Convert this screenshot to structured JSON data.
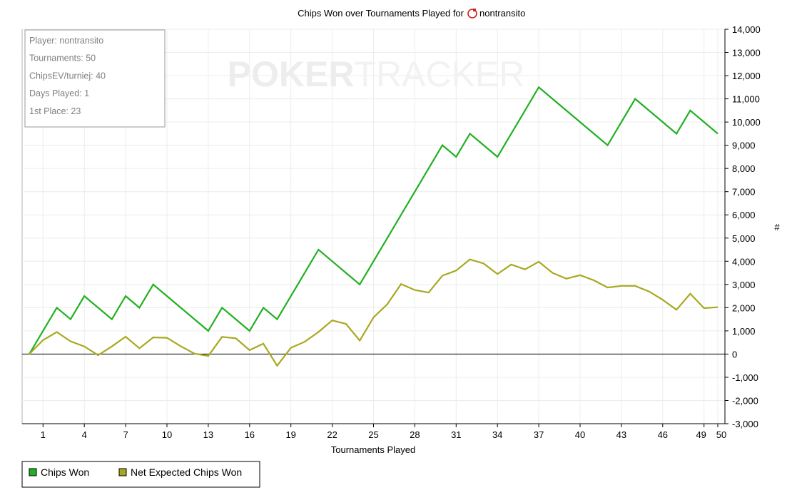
{
  "chart_data": {
    "type": "line",
    "title": "Chips Won over Tournaments Played for",
    "player_name": "nontransito",
    "xlabel": "Tournaments Played",
    "ylabel": "#",
    "xlim": [
      0,
      50
    ],
    "ylim": [
      -3000,
      14000
    ],
    "x_ticks": [
      1,
      4,
      7,
      10,
      13,
      16,
      19,
      22,
      25,
      28,
      31,
      34,
      37,
      40,
      43,
      46,
      49,
      50
    ],
    "x_tick_labels": [
      "1",
      "4",
      "7",
      "10",
      "13",
      "16",
      "19",
      "22",
      "25",
      "28",
      "31",
      "34",
      "37",
      "40",
      "43",
      "46",
      "49",
      "50"
    ],
    "y_ticks": [
      -3000,
      -2000,
      -1000,
      0,
      1000,
      2000,
      3000,
      4000,
      5000,
      6000,
      7000,
      8000,
      9000,
      10000,
      11000,
      12000,
      13000,
      14000
    ],
    "y_tick_labels": [
      "-3,000",
      "-2,000",
      "-1,000",
      "0",
      "1,000",
      "2,000",
      "3,000",
      "4,000",
      "5,000",
      "6,000",
      "7,000",
      "8,000",
      "9,000",
      "10,000",
      "11,000",
      "12,000",
      "13,000",
      "14,000"
    ],
    "grid": true,
    "legend_position": "bottom-left",
    "series": [
      {
        "name": "Chips Won",
        "color": "#22b022",
        "x": [
          0,
          1,
          2,
          3,
          4,
          5,
          6,
          7,
          8,
          9,
          10,
          11,
          12,
          13,
          14,
          15,
          16,
          17,
          18,
          19,
          20,
          21,
          22,
          23,
          24,
          25,
          26,
          27,
          28,
          29,
          30,
          31,
          32,
          33,
          34,
          35,
          36,
          37,
          38,
          39,
          40,
          41,
          42,
          43,
          44,
          45,
          46,
          47,
          48,
          49,
          50
        ],
        "values": [
          0,
          1000,
          2000,
          1500,
          2500,
          2000,
          1500,
          2500,
          2000,
          3000,
          2500,
          2000,
          1500,
          1000,
          2000,
          1500,
          1000,
          2000,
          1500,
          2500,
          3500,
          4500,
          4000,
          3500,
          3000,
          4000,
          5000,
          6000,
          7000,
          8000,
          9000,
          8500,
          9500,
          9000,
          8500,
          9500,
          10500,
          11500,
          11000,
          10500,
          10000,
          9500,
          9000,
          10000,
          11000,
          10500,
          10000,
          9500,
          10500,
          10000,
          9500
        ]
      },
      {
        "name": "Net Expected Chips Won",
        "color": "#a8a820",
        "x": [
          0,
          1,
          2,
          3,
          4,
          5,
          6,
          7,
          8,
          9,
          10,
          11,
          12,
          13,
          14,
          15,
          16,
          17,
          18,
          19,
          20,
          21,
          22,
          23,
          24,
          25,
          26,
          27,
          28,
          29,
          30,
          31,
          32,
          33,
          34,
          35,
          36,
          37,
          38,
          39,
          40,
          41,
          42,
          43,
          44,
          45,
          46,
          47,
          48,
          49,
          50
        ],
        "values": [
          0,
          600,
          950,
          550,
          330,
          -50,
          330,
          750,
          250,
          720,
          700,
          340,
          20,
          -80,
          740,
          680,
          170,
          450,
          -500,
          270,
          530,
          950,
          1450,
          1300,
          580,
          1580,
          2150,
          3020,
          2760,
          2650,
          3380,
          3600,
          4080,
          3900,
          3450,
          3860,
          3650,
          3980,
          3500,
          3250,
          3400,
          3180,
          2870,
          2940,
          2940,
          2700,
          2340,
          1910,
          2600,
          1980,
          2020
        ]
      }
    ],
    "info_box": [
      "Player: nontransito",
      "Tournaments: 50",
      "ChipsEV/turniej: 40",
      "Days Played: 1",
      "1st Place: 23"
    ],
    "watermark": "POKERTRACKER"
  }
}
